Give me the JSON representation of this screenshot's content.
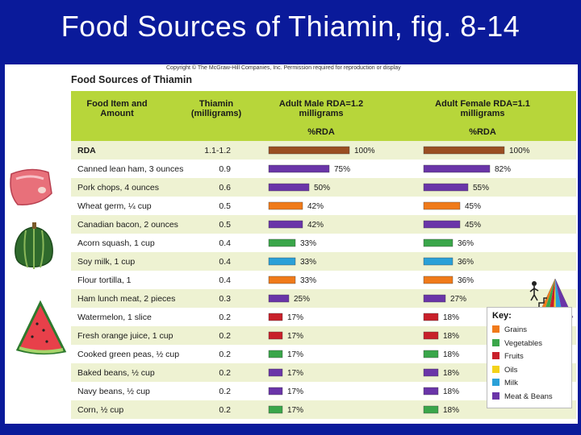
{
  "slide": {
    "title": "Food Sources of Thiamin, fig. 8-14"
  },
  "copyright": "Copyright © The McGraw-Hill Companies, Inc. Permission required for reproduction or display",
  "chart_data": {
    "type": "bar",
    "title": "Food Sources of Thiamin",
    "columns": {
      "food": "Food Item and Amount",
      "thiamin": "Thiamin (milligrams)",
      "male": "Adult Male RDA=1.2 milligrams",
      "female": "Adult Female RDA=1.1 milligrams",
      "pct": "%RDA"
    },
    "categories": [
      "RDA",
      "Canned lean ham, 3 ounces",
      "Pork chops, 4 ounces",
      "Wheat germ, ¼ cup",
      "Canadian bacon, 2 ounces",
      "Acorn squash, 1 cup",
      "Soy milk, 1 cup",
      "Flour tortilla, 1",
      "Ham lunch meat, 2 pieces",
      "Watermelon, 1 slice",
      "Fresh orange juice, 1 cup",
      "Cooked green peas, ½ cup",
      "Baked beans, ½ cup",
      "Navy beans, ½ cup",
      "Corn, ½ cup"
    ],
    "thiamin_mg": [
      "1.1-1.2",
      "0.9",
      "0.6",
      "0.5",
      "0.5",
      "0.4",
      "0.4",
      "0.4",
      "0.3",
      "0.2",
      "0.2",
      "0.2",
      "0.2",
      "0.2",
      "0.2"
    ],
    "series": [
      {
        "name": "Adult Male %RDA",
        "values": [
          100,
          75,
          50,
          42,
          42,
          33,
          33,
          33,
          25,
          17,
          17,
          17,
          17,
          17,
          17
        ]
      },
      {
        "name": "Adult Female %RDA",
        "values": [
          100,
          82,
          55,
          45,
          45,
          36,
          36,
          36,
          27,
          18,
          18,
          18,
          18,
          18,
          18
        ]
      }
    ],
    "groups": [
      "rda",
      "meat",
      "meat",
      "grains",
      "meat",
      "vegetables",
      "milk",
      "grains",
      "meat",
      "fruits",
      "fruits",
      "vegetables",
      "meat",
      "meat",
      "vegetables"
    ],
    "xlim": [
      0,
      100
    ],
    "unit": "%"
  },
  "key": {
    "title": "Key:",
    "items": [
      {
        "label": "Grains",
        "color": "#f07a1a"
      },
      {
        "label": "Vegetables",
        "color": "#3aa64a"
      },
      {
        "label": "Fruits",
        "color": "#c8202a"
      },
      {
        "label": "Oils",
        "color": "#f3d21a"
      },
      {
        "label": "Milk",
        "color": "#2aa0d8"
      },
      {
        "label": "Meat & Beans",
        "color": "#6a35a8"
      }
    ]
  },
  "colors": {
    "rda": "#9a4e22",
    "grains": "#f07a1a",
    "vegetables": "#3aa64a",
    "fruits": "#c8202a",
    "oils": "#f3d21a",
    "milk": "#2aa0d8",
    "meat": "#6a35a8",
    "header": "#b7d63a",
    "row_even": "#eef2d2",
    "row_odd": "#ffffff",
    "background": "#0a1a9a"
  }
}
